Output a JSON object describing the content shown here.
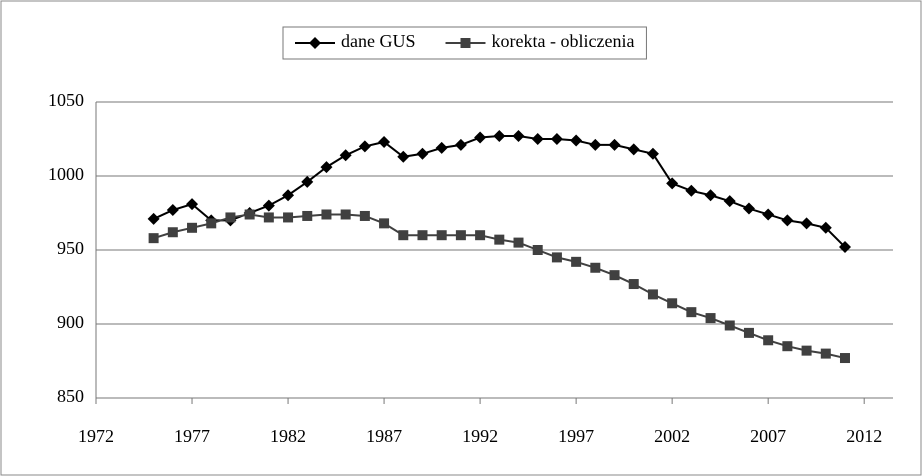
{
  "chart_data": {
    "type": "line",
    "x": [
      1975,
      1976,
      1977,
      1978,
      1979,
      1980,
      1981,
      1982,
      1983,
      1984,
      1985,
      1986,
      1987,
      1988,
      1989,
      1990,
      1991,
      1992,
      1993,
      1994,
      1995,
      1996,
      1997,
      1998,
      1999,
      2000,
      2001,
      2002,
      2003,
      2004,
      2005,
      2006,
      2007,
      2008,
      2009,
      2010,
      2011
    ],
    "series": [
      {
        "name": "dane GUS",
        "color": "#000000",
        "marker": "diamond",
        "values": [
          971,
          977,
          981,
          970,
          970,
          975,
          980,
          987,
          996,
          1006,
          1014,
          1020,
          1023,
          1013,
          1015,
          1019,
          1021,
          1026,
          1027,
          1027,
          1025,
          1025,
          1024,
          1021,
          1021,
          1018,
          1015,
          995,
          990,
          987,
          983,
          978,
          974,
          970,
          968,
          965,
          952
        ]
      },
      {
        "name": "korekta - obliczenia",
        "color": "#404040",
        "marker": "square",
        "values": [
          958,
          962,
          965,
          968,
          972,
          974,
          972,
          972,
          973,
          974,
          974,
          973,
          968,
          960,
          960,
          960,
          960,
          960,
          957,
          955,
          950,
          945,
          942,
          938,
          933,
          927,
          920,
          914,
          908,
          904,
          899,
          894,
          889,
          885,
          882,
          880,
          877
        ]
      }
    ],
    "xlim": [
      1972,
      2013.5
    ],
    "xticks": [
      1972,
      1977,
      1982,
      1987,
      1992,
      1997,
      2002,
      2007,
      2012
    ],
    "ylim": [
      850,
      1050
    ],
    "yticks": [
      850,
      900,
      950,
      1000,
      1050
    ],
    "grid": true,
    "legend": "top"
  }
}
